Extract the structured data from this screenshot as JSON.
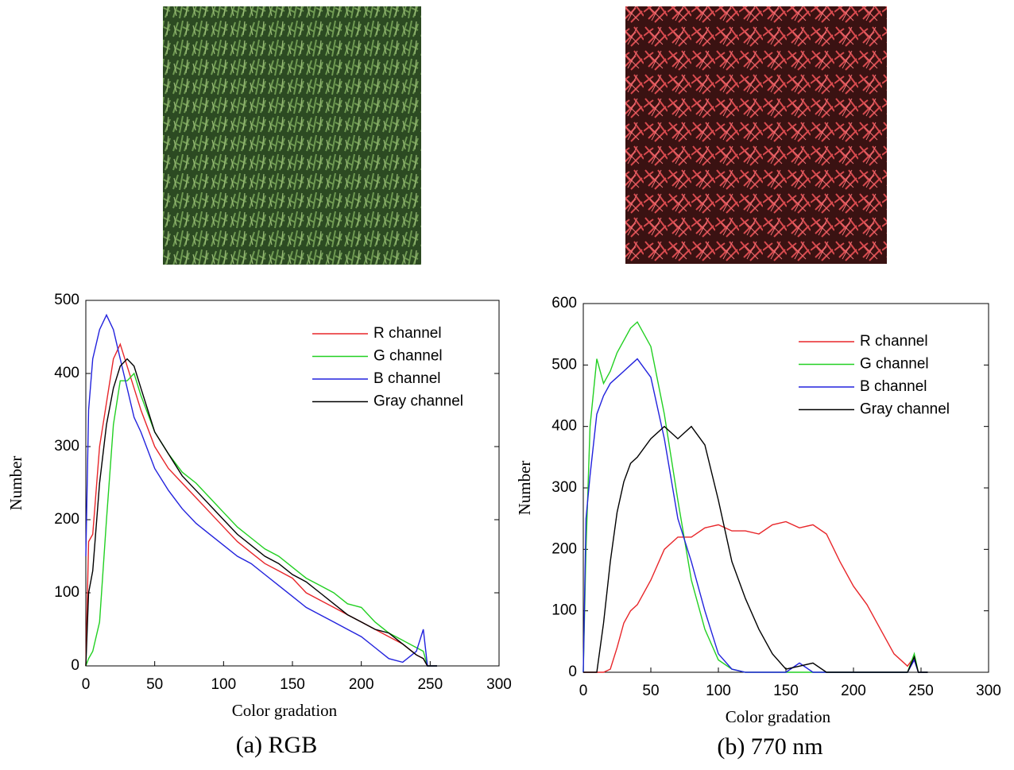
{
  "chart_data": [
    {
      "type": "line",
      "caption": "(a) RGB",
      "x_label": "Color gradation",
      "y_label": "Number",
      "x": [
        0,
        2,
        5,
        10,
        15,
        20,
        25,
        30,
        35,
        40,
        50,
        60,
        70,
        80,
        90,
        100,
        110,
        120,
        130,
        140,
        150,
        160,
        170,
        180,
        190,
        200,
        210,
        220,
        230,
        240,
        245,
        248,
        250,
        255
      ],
      "xlim": [
        0,
        300
      ],
      "xticks": [
        0,
        50,
        100,
        150,
        200,
        250,
        300
      ],
      "ylim": [
        0,
        500
      ],
      "yticks": [
        0,
        100,
        200,
        300,
        400,
        500
      ],
      "series": [
        {
          "name": "R channel",
          "color": "#e8262a",
          "values": [
            0,
            170,
            180,
            300,
            360,
            420,
            440,
            410,
            380,
            350,
            300,
            270,
            250,
            230,
            210,
            190,
            170,
            155,
            140,
            130,
            120,
            100,
            90,
            80,
            70,
            60,
            50,
            40,
            30,
            15,
            10,
            0,
            0,
            0
          ]
        },
        {
          "name": "G channel",
          "color": "#22d022",
          "values": [
            0,
            10,
            20,
            60,
            200,
            330,
            390,
            390,
            400,
            370,
            320,
            290,
            265,
            250,
            230,
            210,
            190,
            175,
            160,
            150,
            135,
            120,
            110,
            100,
            85,
            80,
            60,
            45,
            35,
            25,
            20,
            0,
            0,
            0
          ]
        },
        {
          "name": "B channel",
          "color": "#2222dd",
          "values": [
            150,
            350,
            420,
            460,
            480,
            460,
            420,
            380,
            340,
            320,
            270,
            240,
            215,
            195,
            180,
            165,
            150,
            140,
            125,
            110,
            95,
            80,
            70,
            60,
            50,
            40,
            25,
            10,
            5,
            20,
            50,
            0,
            0,
            0
          ]
        },
        {
          "name": "Gray channel",
          "color": "#000000",
          "values": [
            0,
            100,
            130,
            250,
            330,
            380,
            410,
            420,
            410,
            380,
            320,
            290,
            260,
            240,
            220,
            200,
            180,
            165,
            150,
            140,
            125,
            115,
            100,
            85,
            70,
            60,
            50,
            45,
            30,
            15,
            10,
            0,
            0,
            0
          ]
        }
      ]
    },
    {
      "type": "line",
      "caption": "(b) 770 nm",
      "x_label": "Color gradation",
      "y_label": "Number",
      "x": [
        0,
        2,
        5,
        10,
        15,
        20,
        25,
        30,
        35,
        40,
        50,
        60,
        70,
        80,
        90,
        100,
        110,
        120,
        130,
        140,
        150,
        160,
        170,
        180,
        190,
        200,
        210,
        220,
        230,
        240,
        245,
        248,
        250,
        255
      ],
      "xlim": [
        0,
        300
      ],
      "xticks": [
        0,
        50,
        100,
        150,
        200,
        250,
        300
      ],
      "ylim": [
        0,
        600
      ],
      "yticks": [
        0,
        100,
        200,
        300,
        400,
        500,
        600
      ],
      "series": [
        {
          "name": "R channel",
          "color": "#e8262a",
          "values": [
            0,
            0,
            0,
            0,
            0,
            5,
            40,
            80,
            100,
            110,
            150,
            200,
            220,
            220,
            235,
            240,
            230,
            230,
            225,
            240,
            245,
            235,
            240,
            225,
            180,
            140,
            110,
            70,
            30,
            10,
            25,
            0,
            0,
            0
          ]
        },
        {
          "name": "G channel",
          "color": "#22d022",
          "values": [
            0,
            200,
            400,
            510,
            470,
            490,
            520,
            540,
            560,
            570,
            530,
            420,
            280,
            150,
            70,
            20,
            5,
            0,
            0,
            0,
            0,
            0,
            0,
            0,
            0,
            0,
            0,
            0,
            0,
            0,
            30,
            0,
            0,
            0
          ]
        },
        {
          "name": "B channel",
          "color": "#2222dd",
          "values": [
            0,
            250,
            320,
            420,
            450,
            470,
            480,
            490,
            500,
            510,
            480,
            380,
            250,
            180,
            100,
            30,
            5,
            0,
            0,
            0,
            0,
            15,
            0,
            0,
            0,
            0,
            0,
            0,
            0,
            0,
            20,
            0,
            0,
            0
          ]
        },
        {
          "name": "Gray channel",
          "color": "#000000",
          "values": [
            0,
            0,
            0,
            0,
            80,
            180,
            260,
            310,
            340,
            350,
            380,
            400,
            380,
            400,
            370,
            280,
            180,
            120,
            70,
            30,
            5,
            10,
            15,
            0,
            0,
            0,
            0,
            0,
            0,
            0,
            25,
            0,
            0,
            0
          ]
        }
      ]
    }
  ]
}
